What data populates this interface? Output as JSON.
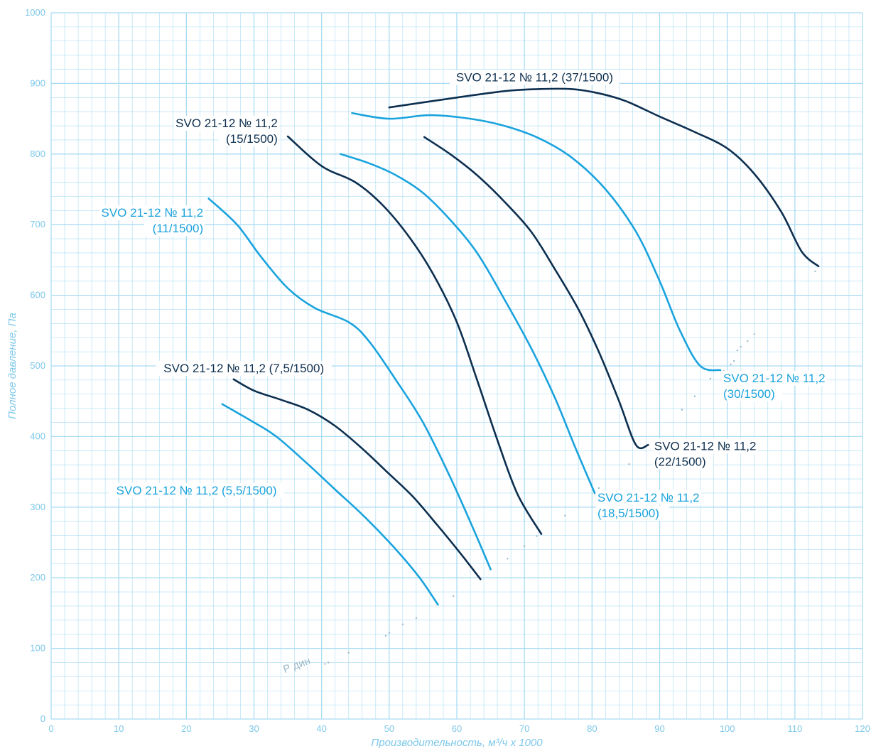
{
  "chart_data": {
    "type": "line",
    "xlabel": "Производительность, м³/ч x 1000",
    "ylabel": "Полное давление, Па",
    "xlim": [
      0,
      120
    ],
    "ylim": [
      0,
      1000
    ],
    "xticks": [
      "0",
      "10",
      "20",
      "30",
      "40",
      "50",
      "60",
      "70",
      "80",
      "90",
      "100",
      "110",
      "120"
    ],
    "yticks": [
      "0",
      "100",
      "200",
      "300",
      "400",
      "500",
      "600",
      "700",
      "800",
      "900",
      "1000"
    ],
    "grid": true,
    "colors": {
      "dark": "#0d2f4f",
      "light": "#1aa3dd",
      "grid": "#a9dcf3",
      "pdyn": "#9bb7c8"
    },
    "series": [
      {
        "name": "SVO 21-12 № 11,2 (5,5/1500)",
        "label_lines": [
          "SVO 21-12 № 11,2 (5,5/1500)"
        ],
        "color": "light",
        "x": [
          25.3,
          30,
          33.3,
          37.5,
          42,
          46.5,
          51,
          54.5,
          57.2
        ],
        "y": [
          446,
          420,
          400,
          365,
          325,
          285,
          240,
          200,
          162
        ]
      },
      {
        "name": "SVO 21-12 № 11,2 (7,5/1500)",
        "label_lines": [
          "SVO 21-12 № 11,2 (7,5/1500)"
        ],
        "color": "dark",
        "x": [
          27,
          30,
          34,
          38,
          42,
          46,
          50,
          53.5,
          57,
          60.5,
          63.5
        ],
        "y": [
          481,
          465,
          452,
          438,
          415,
          383,
          347,
          315,
          276,
          235,
          198
        ]
      },
      {
        "name": "SVO 21-12 № 11,2 (11/1500)",
        "label_lines": [
          "SVO 21-12 № 11,2",
          "(11/1500)"
        ],
        "color": "light",
        "x": [
          23.3,
          27.5,
          31,
          35,
          39,
          44,
          47,
          51,
          55,
          59,
          62.5,
          65
        ],
        "y": [
          737,
          700,
          655,
          610,
          582,
          562,
          535,
          480,
          420,
          343,
          268,
          212
        ]
      },
      {
        "name": "SVO 21-12 № 11,2 (15/1500)",
        "label_lines": [
          "SVO 21-12 № 11,2",
          "(15/1500)"
        ],
        "color": "dark",
        "x": [
          35,
          40,
          45,
          49,
          53,
          56.5,
          60,
          63,
          66,
          69,
          72.5
        ],
        "y": [
          825,
          783,
          760,
          728,
          682,
          630,
          562,
          480,
          395,
          318,
          262
        ]
      },
      {
        "name": "SVO 21-12 № 11,2 (18,5/1500)",
        "label_lines": [
          "SVO 21-12 № 11,2",
          "(18,5/1500)"
        ],
        "color": "light",
        "x": [
          42.8,
          47,
          51,
          55,
          59,
          63,
          67,
          71,
          74.5,
          77.5,
          80.4
        ],
        "y": [
          800,
          787,
          770,
          745,
          707,
          660,
          595,
          525,
          455,
          385,
          320
        ]
      },
      {
        "name": "SVO 21-12 № 11,2 (22/1500)",
        "label_lines": [
          "SVO 21-12 № 11,2",
          "(22/1500)"
        ],
        "color": "dark",
        "x": [
          55.2,
          59,
          63,
          67,
          71,
          74.5,
          78,
          81,
          84,
          86.5,
          88.3
        ],
        "y": [
          824,
          800,
          770,
          733,
          690,
          637,
          580,
          520,
          450,
          388,
          388
        ]
      },
      {
        "name": "SVO 21-12 № 11,2 (30/1500)",
        "label_lines": [
          "SVO 21-12 № 11,2",
          "(30/1500)"
        ],
        "color": "light",
        "x": [
          44.5,
          50,
          56,
          62,
          67,
          72,
          77,
          82,
          86.5,
          90,
          93,
          96,
          99
        ],
        "y": [
          858,
          850,
          855,
          850,
          840,
          823,
          795,
          750,
          690,
          620,
          550,
          500,
          494
        ]
      },
      {
        "name": "SVO 21-12 № 11,2 (37/1500)",
        "label_lines": [
          "SVO 21-12 № 11,2 (37/1500)"
        ],
        "color": "dark",
        "x": [
          50,
          60,
          67,
          72,
          77,
          81,
          85,
          90,
          95,
          100,
          104,
          108,
          111,
          113.5
        ],
        "y": [
          866,
          880,
          889,
          892,
          892,
          886,
          875,
          853,
          832,
          808,
          772,
          718,
          662,
          641
        ]
      }
    ],
    "annotations": [
      {
        "text": "Р дин"
      }
    ],
    "p_dyn_points": {
      "x": [
        40.5,
        41,
        44,
        49.5,
        50,
        52,
        54,
        59.5,
        63.5,
        67.5,
        70,
        71.8,
        76,
        81,
        85.5,
        93.3,
        95.2,
        97.5,
        99.5,
        100.5,
        101,
        101.5,
        102,
        103,
        104,
        113
      ],
      "y": [
        78,
        80,
        94,
        118,
        122,
        134,
        143,
        174,
        198,
        227,
        245,
        259,
        288,
        327,
        361,
        438,
        457,
        482,
        493,
        502,
        507,
        522,
        527,
        535,
        545,
        634
      ]
    }
  }
}
